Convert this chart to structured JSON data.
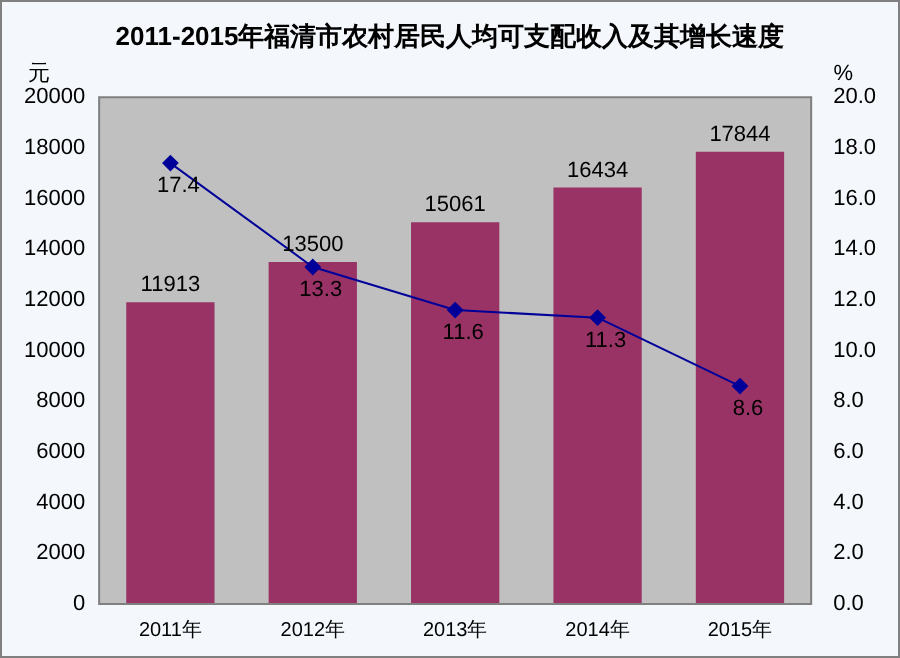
{
  "chart_data": {
    "type": "bar",
    "title": "2011-2015年福清市农村居民人均可支配收入及其增长速度",
    "ylabel": "元",
    "y2label": "%",
    "categories": [
      "2011年",
      "2012年",
      "2013年",
      "2014年",
      "2015年"
    ],
    "series": [
      {
        "color": "#993366",
        "values": [
          11913,
          13500,
          15061,
          16434,
          17844
        ]
      },
      {
        "type": "line",
        "axis": "y2",
        "color": "#000099",
        "marker": "diamond",
        "values": [
          17.4,
          13.3,
          11.6,
          11.3,
          8.6
        ]
      }
    ],
    "ylim": [
      0,
      20000
    ],
    "yticks": [
      0,
      2000,
      4000,
      6000,
      8000,
      10000,
      12000,
      14000,
      16000,
      18000,
      20000
    ],
    "y2lim": [
      0,
      20
    ],
    "y2ticks": [
      {
        "value": 0,
        "label": "0.0"
      },
      {
        "value": 2,
        "label": "2.0"
      },
      {
        "value": 4,
        "label": "4.0"
      },
      {
        "value": 6,
        "label": "6.0"
      },
      {
        "value": 8,
        "label": "8.0"
      },
      {
        "value": 10,
        "label": "10.0"
      },
      {
        "value": 12,
        "label": "12.0"
      },
      {
        "value": 14,
        "label": "14.0"
      },
      {
        "value": 16,
        "label": "16.0"
      },
      {
        "value": 18,
        "label": "18.0"
      },
      {
        "value": 20,
        "label": "20.0"
      }
    ],
    "grid": false,
    "legend": false,
    "data_labels": true
  }
}
